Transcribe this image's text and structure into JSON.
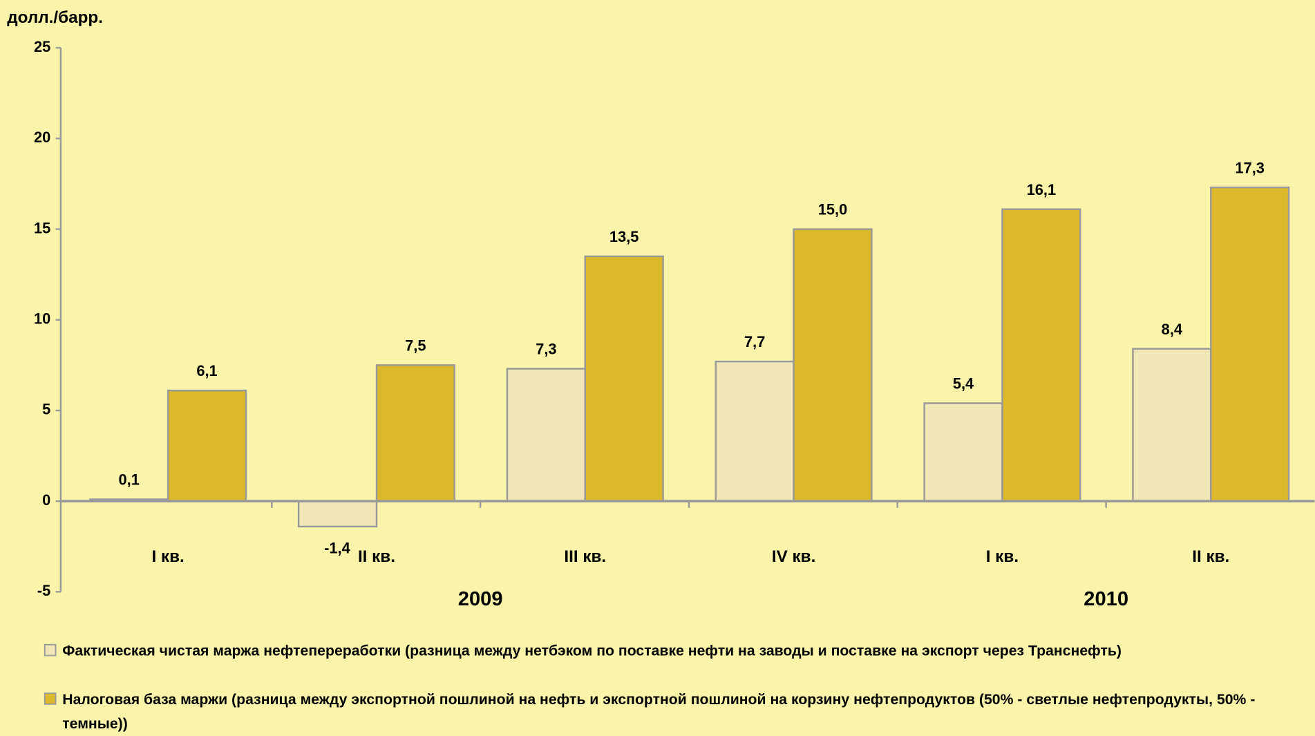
{
  "chart_data": {
    "type": "bar",
    "y_label": "долл./барр.",
    "categories": [
      "I кв.",
      "II кв.",
      "III кв.",
      "IV кв.",
      "I кв.",
      "II кв."
    ],
    "groups": [
      "2009",
      "2010"
    ],
    "series": [
      {
        "name": "Фактическая чистая маржа нефтепереработки (разница между нетбэком по поставке нефти на заводы и поставке на экспорт через Транснефть)",
        "color": "#f1e6b5",
        "values": [
          0.1,
          -1.4,
          7.3,
          7.7,
          5.4,
          8.4
        ],
        "value_labels": [
          "0,1",
          "-1,4",
          "7,3",
          "7,7",
          "5,4",
          "8,4"
        ]
      },
      {
        "name": "Налоговая база маржи (разница между экспортной пошлиной на нефть и экспортной пошлиной на корзину нефтепродуктов (50% - светлые нефтепродукты, 50% - темные))",
        "color": "#dcb92b",
        "values": [
          6.1,
          7.5,
          13.5,
          15.0,
          16.1,
          17.3
        ],
        "value_labels": [
          "6,1",
          "7,5",
          "13,5",
          "15,0",
          "16,1",
          "17,3"
        ]
      }
    ],
    "ylim": [
      -5,
      25
    ],
    "yticks": [
      -5,
      0,
      5,
      10,
      15,
      20,
      25
    ],
    "grid": false,
    "legend": "bottom"
  }
}
